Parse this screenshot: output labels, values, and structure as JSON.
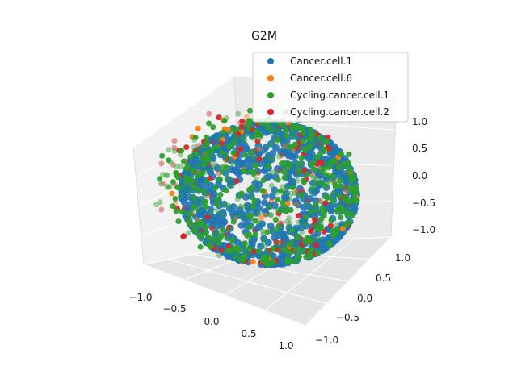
{
  "chart_data": {
    "type": "scatter",
    "projection": "3d",
    "title": "G2M",
    "xlabel": "",
    "ylabel": "",
    "zlabel": "",
    "xlim": [
      -1.0,
      1.0
    ],
    "ylim": [
      -1.0,
      1.0
    ],
    "zlim": [
      -1.0,
      1.0
    ],
    "x_ticks": [
      "−1.0",
      "−0.5",
      "0.0",
      "0.5",
      "1.0"
    ],
    "y_ticks": [
      "1.0",
      "0.5",
      "0.0",
      "−0.5",
      "−1.0"
    ],
    "z_ticks": [
      "1.0",
      "0.5",
      "0.0",
      "−0.5",
      "−1.0"
    ],
    "grid": true,
    "legend_position": "top-right",
    "series": [
      {
        "name": "Cancer.cell.1",
        "color": "#1f77b4",
        "distribution": "dense unit sphere surface"
      },
      {
        "name": "Cancer.cell.6",
        "color": "#ff7f0e",
        "distribution": "sparse on sphere surface"
      },
      {
        "name": "Cycling.cancer.cell.1",
        "color": "#2ca02c",
        "distribution": "patches on sphere surface"
      },
      {
        "name": "Cycling.cancer.cell.2",
        "color": "#d62728",
        "distribution": "scattered on sphere surface"
      }
    ]
  }
}
